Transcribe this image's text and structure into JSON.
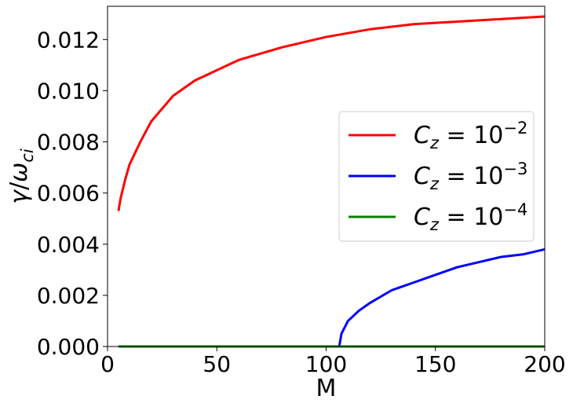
{
  "chart_data": {
    "type": "line",
    "xlabel": "M",
    "ylabel": "γ/ω_ci",
    "xlim": [
      0,
      200
    ],
    "ylim": [
      0,
      0.0133
    ],
    "xticks": [
      0,
      50,
      100,
      150,
      200
    ],
    "xtick_labels": [
      "0",
      "50",
      "100",
      "150",
      "200"
    ],
    "yticks": [
      0,
      0.002,
      0.004,
      0.006,
      0.008,
      0.01,
      0.012
    ],
    "ytick_labels": [
      "0.000",
      "0.002",
      "0.004",
      "0.006",
      "0.008",
      "0.010",
      "0.012"
    ],
    "grid": false,
    "legend_position": "center-right",
    "series": [
      {
        "name": "C_z = 10^-2",
        "color": "#ff0000",
        "x": [
          5,
          6,
          8,
          10,
          15,
          20,
          30,
          40,
          50,
          60,
          80,
          100,
          120,
          140,
          160,
          180,
          200
        ],
        "y": [
          0.0053,
          0.0058,
          0.0065,
          0.0071,
          0.008,
          0.0088,
          0.0098,
          0.0104,
          0.0108,
          0.0112,
          0.0117,
          0.0121,
          0.0124,
          0.0126,
          0.0127,
          0.0128,
          0.0129
        ]
      },
      {
        "name": "C_z = 10^-3",
        "color": "#0000ff",
        "x": [
          5,
          50,
          106,
          107,
          110,
          115,
          120,
          130,
          140,
          150,
          160,
          170,
          180,
          190,
          200
        ],
        "y": [
          0,
          0,
          0,
          0.0005,
          0.001,
          0.0014,
          0.0017,
          0.0022,
          0.0025,
          0.0028,
          0.0031,
          0.0033,
          0.0035,
          0.0036,
          0.0038
        ]
      },
      {
        "name": "C_z = 10^-4",
        "color": "#008000",
        "x": [
          5,
          200
        ],
        "y": [
          0,
          0
        ]
      }
    ]
  }
}
